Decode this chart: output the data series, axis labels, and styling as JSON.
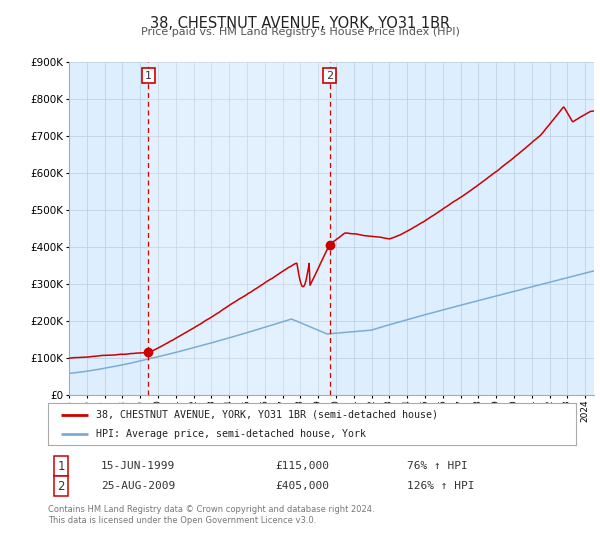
{
  "title": "38, CHESTNUT AVENUE, YORK, YO31 1BR",
  "subtitle": "Price paid vs. HM Land Registry's House Price Index (HPI)",
  "legend_line1": "38, CHESTNUT AVENUE, YORK, YO31 1BR (semi-detached house)",
  "legend_line2": "HPI: Average price, semi-detached house, York",
  "sale1_date": "15-JUN-1999",
  "sale1_price": 115000,
  "sale1_pct": "76% ↑ HPI",
  "sale1_year": 1999.46,
  "sale2_date": "25-AUG-2009",
  "sale2_price": 405000,
  "sale2_pct": "126% ↑ HPI",
  "sale2_year": 2009.65,
  "footnote": "Contains HM Land Registry data © Crown copyright and database right 2024.\nThis data is licensed under the Open Government Licence v3.0.",
  "red_color": "#cc0000",
  "blue_color": "#7aadd4",
  "bg_color": "#ddeeff",
  "grid_color": "#bbccdd",
  "ylim_max": 900000,
  "ylim_min": 0,
  "xlim_min": 1995.0,
  "xlim_max": 2024.5
}
